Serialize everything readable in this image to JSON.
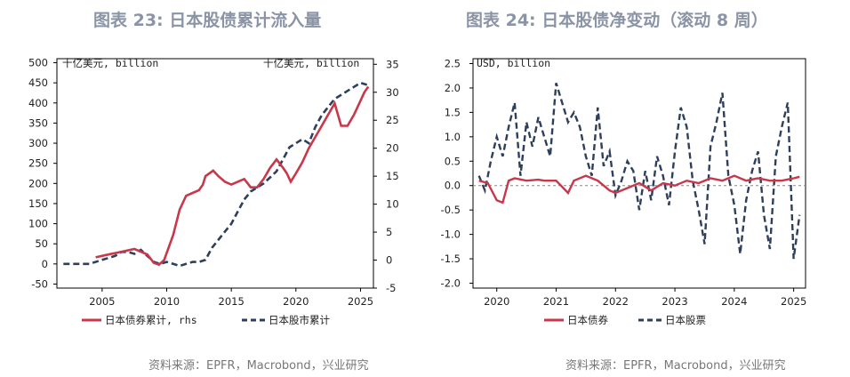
{
  "titles": {
    "left": "图表 23: 日本股债累计流入量",
    "right": "图表 24: 日本股债净变动（滚动 8 周）"
  },
  "sources": {
    "left": "资料来源：EPFR，Macrobond，兴业研究",
    "right": "资料来源：EPFR，Macrobond，兴业研究"
  },
  "colors": {
    "bond": "#c8374a",
    "equity": "#2e3f5c"
  },
  "chart_data": [
    {
      "type": "line",
      "title": "图表 23: 日本股债累计流入量",
      "unit_left": "十亿美元, billion",
      "unit_right": "十亿美元, billion",
      "xlim": [
        2001.5,
        2026.0
      ],
      "ylim_left": [
        -60,
        510
      ],
      "ylim_right": [
        -5,
        36
      ],
      "x_ticks": [
        2005,
        2010,
        2015,
        2020,
        2025
      ],
      "y_ticks_left": [
        -50,
        0,
        50,
        100,
        150,
        200,
        250,
        300,
        350,
        400,
        450,
        500
      ],
      "y_ticks_right": [
        -5,
        0,
        5,
        10,
        15,
        20,
        25,
        30,
        35
      ],
      "legend": [
        "日本债券累计, rhs",
        "日本股市累计"
      ],
      "series": [
        {
          "name": "日本债券累计, rhs",
          "axis": "right",
          "x": [
            2004.5,
            2005.5,
            2006.5,
            2007.5,
            2008.5,
            2009.0,
            2009.4,
            2009.8,
            2010.5,
            2011.0,
            2011.5,
            2012.0,
            2012.5,
            2012.8,
            2013.0,
            2013.3,
            2013.6,
            2014.0,
            2014.5,
            2015.0,
            2015.5,
            2016.0,
            2016.5,
            2017.0,
            2017.5,
            2018.0,
            2018.5,
            2019.0,
            2019.3,
            2019.6,
            2020.0,
            2020.5,
            2021.0,
            2021.5,
            2022.0,
            2022.5,
            2023.0,
            2023.5,
            2024.0,
            2024.5,
            2025.0,
            2025.3,
            2025.6
          ],
          "values": [
            0.5,
            1.0,
            1.5,
            2.0,
            1.0,
            -0.5,
            -0.8,
            0.0,
            4.5,
            9.0,
            11.5,
            12.0,
            12.5,
            13.5,
            15.0,
            15.5,
            16.0,
            15.0,
            14.0,
            13.5,
            14.0,
            14.5,
            13.0,
            13.0,
            14.5,
            16.5,
            18.0,
            16.5,
            15.5,
            14.0,
            15.5,
            17.5,
            20.0,
            22.0,
            24.0,
            26.0,
            28.0,
            24.0,
            24.0,
            26.0,
            28.5,
            30.0,
            31.0
          ]
        },
        {
          "name": "日本股市累计",
          "axis": "left",
          "x": [
            2002.0,
            2003.0,
            2004.0,
            2005.0,
            2006.0,
            2006.5,
            2007.0,
            2007.5,
            2008.0,
            2008.5,
            2009.0,
            2009.5,
            2010.0,
            2010.5,
            2011.0,
            2011.5,
            2012.0,
            2012.5,
            2013.0,
            2013.5,
            2014.0,
            2014.5,
            2015.0,
            2015.5,
            2016.0,
            2016.5,
            2017.0,
            2017.5,
            2018.0,
            2018.5,
            2019.0,
            2019.5,
            2020.0,
            2020.5,
            2021.0,
            2021.5,
            2022.0,
            2022.5,
            2023.0,
            2023.5,
            2024.0,
            2024.5,
            2025.0,
            2025.5
          ],
          "values": [
            0,
            0,
            0,
            10,
            20,
            30,
            30,
            25,
            35,
            20,
            5,
            0,
            5,
            0,
            -5,
            0,
            5,
            5,
            10,
            40,
            60,
            80,
            100,
            130,
            160,
            180,
            190,
            200,
            215,
            230,
            260,
            290,
            300,
            310,
            300,
            340,
            370,
            390,
            410,
            420,
            430,
            440,
            450,
            445
          ]
        }
      ]
    },
    {
      "type": "line",
      "title": "图表 24: 日本股债净变动（滚动 8 周）",
      "unit": "USD, billion",
      "xlim": [
        2019.6,
        2025.2
      ],
      "ylim": [
        -2.1,
        2.6
      ],
      "x_ticks": [
        2020,
        2021,
        2022,
        2023,
        2024,
        2025
      ],
      "y_ticks": [
        -2.0,
        -1.5,
        -1.0,
        -0.5,
        0.0,
        0.5,
        1.0,
        1.5,
        2.0,
        2.5
      ],
      "zero_line": true,
      "legend": [
        "日本债券",
        "日本股票"
      ],
      "series": [
        {
          "name": "日本债券",
          "x": [
            2019.7,
            2019.85,
            2020.0,
            2020.1,
            2020.2,
            2020.3,
            2020.5,
            2020.7,
            2020.8,
            2021.0,
            2021.2,
            2021.3,
            2021.5,
            2021.7,
            2021.9,
            2022.0,
            2022.2,
            2022.4,
            2022.6,
            2022.8,
            2023.0,
            2023.2,
            2023.4,
            2023.6,
            2023.8,
            2024.0,
            2024.2,
            2024.4,
            2024.6,
            2024.8,
            2025.0,
            2025.1
          ],
          "values": [
            0.1,
            0.05,
            -0.3,
            -0.35,
            0.1,
            0.15,
            0.1,
            0.12,
            0.1,
            0.1,
            -0.15,
            0.1,
            0.2,
            0.1,
            -0.1,
            -0.15,
            -0.05,
            0.05,
            -0.1,
            0.05,
            0.0,
            0.1,
            0.05,
            0.15,
            0.1,
            0.2,
            0.1,
            0.15,
            0.1,
            0.1,
            0.15,
            0.18
          ]
        },
        {
          "name": "日本股票",
          "x": [
            2019.7,
            2019.8,
            2019.9,
            2020.0,
            2020.1,
            2020.2,
            2020.3,
            2020.4,
            2020.5,
            2020.6,
            2020.7,
            2020.8,
            2020.9,
            2021.0,
            2021.1,
            2021.2,
            2021.3,
            2021.4,
            2021.5,
            2021.6,
            2021.7,
            2021.8,
            2021.9,
            2022.0,
            2022.1,
            2022.2,
            2022.3,
            2022.4,
            2022.5,
            2022.6,
            2022.7,
            2022.8,
            2022.9,
            2023.0,
            2023.1,
            2023.2,
            2023.3,
            2023.4,
            2023.5,
            2023.6,
            2023.7,
            2023.8,
            2023.9,
            2024.0,
            2024.1,
            2024.2,
            2024.3,
            2024.4,
            2024.5,
            2024.6,
            2024.7,
            2024.8,
            2024.9,
            2025.0,
            2025.1
          ],
          "values": [
            0.2,
            -0.1,
            0.5,
            1.0,
            0.6,
            1.2,
            1.7,
            0.2,
            1.3,
            0.8,
            1.4,
            1.0,
            0.6,
            2.1,
            1.7,
            1.3,
            1.5,
            1.2,
            0.6,
            0.2,
            1.6,
            0.4,
            0.7,
            -0.2,
            0.1,
            0.5,
            0.3,
            -0.5,
            0.3,
            -0.3,
            0.6,
            0.2,
            -0.4,
            0.7,
            1.6,
            1.2,
            0.1,
            -0.5,
            -1.2,
            0.8,
            1.3,
            1.9,
            0.2,
            -0.4,
            -1.4,
            -0.3,
            0.3,
            0.7,
            -0.6,
            -1.3,
            0.6,
            1.2,
            1.7,
            -1.5,
            -0.6
          ]
        }
      ]
    }
  ]
}
